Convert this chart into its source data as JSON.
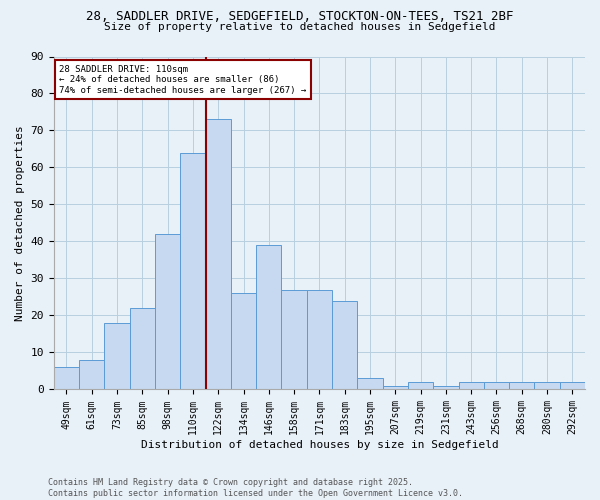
{
  "title_line1": "28, SADDLER DRIVE, SEDGEFIELD, STOCKTON-ON-TEES, TS21 2BF",
  "title_line2": "Size of property relative to detached houses in Sedgefield",
  "xlabel": "Distribution of detached houses by size in Sedgefield",
  "ylabel": "Number of detached properties",
  "categories": [
    "49sqm",
    "61sqm",
    "73sqm",
    "85sqm",
    "98sqm",
    "110sqm",
    "122sqm",
    "134sqm",
    "146sqm",
    "158sqm",
    "171sqm",
    "183sqm",
    "195sqm",
    "207sqm",
    "219sqm",
    "231sqm",
    "243sqm",
    "256sqm",
    "268sqm",
    "280sqm",
    "292sqm"
  ],
  "values": [
    6,
    8,
    18,
    22,
    42,
    64,
    73,
    26,
    39,
    27,
    27,
    24,
    3,
    1,
    2,
    1,
    2,
    2,
    2,
    2,
    2
  ],
  "bar_color": "#c6d9f0",
  "bar_edge_color": "#5b9bd5",
  "vline_color": "#8b0000",
  "vline_x": 5.5,
  "annotation_title": "28 SADDLER DRIVE: 110sqm",
  "annotation_line2": "← 24% of detached houses are smaller (86)",
  "annotation_line3": "74% of semi-detached houses are larger (267) →",
  "annotation_box_color": "#8b0000",
  "ylim": [
    0,
    90
  ],
  "yticks": [
    0,
    10,
    20,
    30,
    40,
    50,
    60,
    70,
    80,
    90
  ],
  "grid_color": "#b8cfe0",
  "footer_line1": "Contains HM Land Registry data © Crown copyright and database right 2025.",
  "footer_line2": "Contains public sector information licensed under the Open Government Licence v3.0.",
  "bg_color": "#e8f0f8",
  "plot_bg_color": "#e8f0f8",
  "title_fontsize": 9,
  "subtitle_fontsize": 8,
  "tick_fontsize": 7,
  "label_fontsize": 8,
  "footer_fontsize": 6
}
